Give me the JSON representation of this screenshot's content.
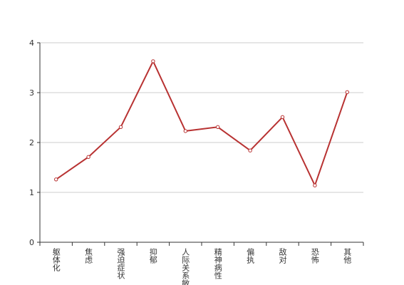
{
  "chart_data": {
    "type": "line",
    "categories": [
      "躯体化",
      "焦虑",
      "强迫症状",
      "抑郁",
      "人际关系敏感",
      "精神病性",
      "偏执",
      "敌对",
      "恐怖",
      "其他"
    ],
    "series": [
      {
        "color": "#b83232",
        "values": [
          1.26,
          1.71,
          2.31,
          3.63,
          2.23,
          2.31,
          1.84,
          2.51,
          1.14,
          3.01
        ]
      }
    ],
    "ylim": [
      0,
      4
    ],
    "yticks": [
      0,
      1,
      2,
      3,
      4
    ],
    "grid": true
  }
}
